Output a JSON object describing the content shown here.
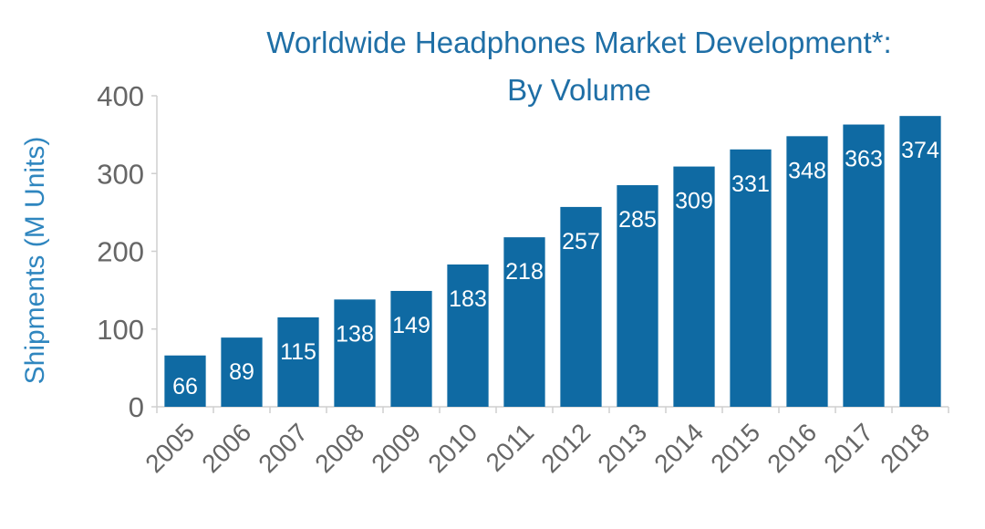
{
  "chart_data": {
    "type": "bar",
    "title_lines": [
      "Worldwide Headphones Market Development*:",
      "By Volume"
    ],
    "xlabel": "",
    "ylabel": "Shipments (M Units)",
    "categories": [
      "2005",
      "2006",
      "2007",
      "2008",
      "2009",
      "2010",
      "2011",
      "2012",
      "2013",
      "2014",
      "2015",
      "2016",
      "2017",
      "2018"
    ],
    "values": [
      66,
      89,
      115,
      138,
      149,
      183,
      218,
      257,
      285,
      309,
      331,
      348,
      363,
      374
    ],
    "ylim": [
      0,
      400
    ],
    "yticks": [
      0,
      100,
      200,
      300,
      400
    ],
    "grid": false,
    "legend": "none",
    "data_labels": "inside-top",
    "colors": {
      "bar": "#0f6aa3",
      "title": "#1f6fa6",
      "ylabel": "#2f86bf",
      "ticks": "#666666",
      "data_label": "#ffffff",
      "axis": "#cfcfcf"
    }
  }
}
